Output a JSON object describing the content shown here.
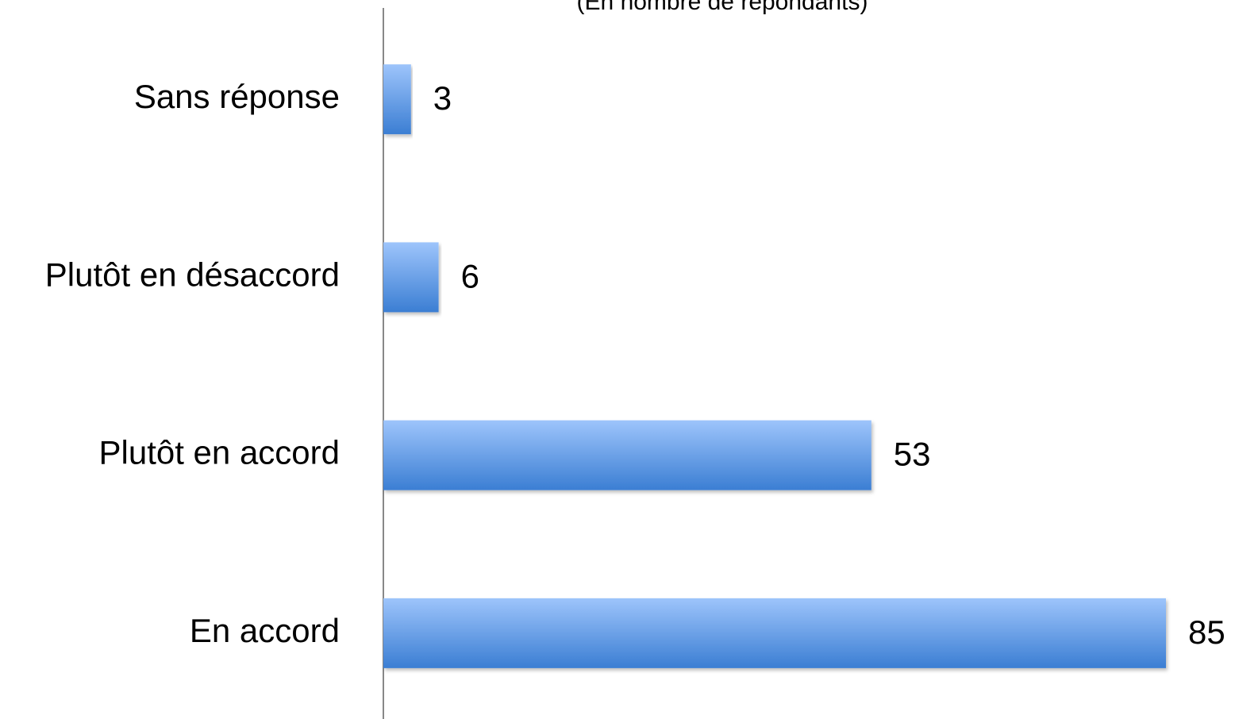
{
  "chart_data": {
    "type": "hbar",
    "subtitle": "(En nombre de répondants)",
    "categories": [
      "Sans réponse",
      "Plutôt en désaccord",
      "Plutôt en accord",
      "En accord"
    ],
    "values": [
      3,
      6,
      53,
      85
    ],
    "color": "#3b7ed3",
    "xlim": [
      0,
      85
    ]
  }
}
